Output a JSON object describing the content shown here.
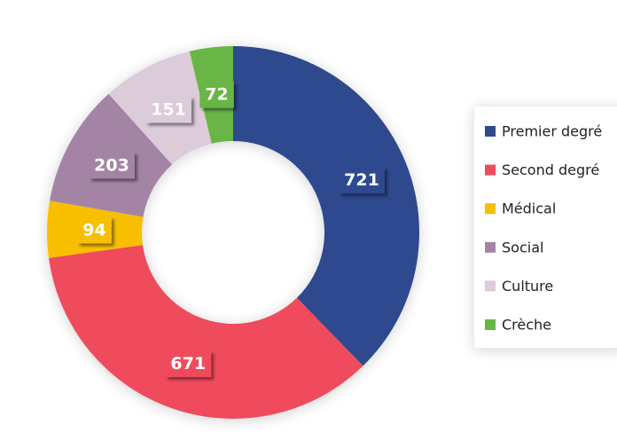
{
  "chart_data": {
    "type": "donut",
    "categories": [
      "Premier degré",
      "Second degré",
      "Médical",
      "Social",
      "Culture",
      "Crèche"
    ],
    "values": [
      721,
      671,
      94,
      203,
      151,
      72
    ],
    "colors": [
      "#2f4a8e",
      "#ef4b5c",
      "#f8bf00",
      "#a484a5",
      "#dccbd9",
      "#69b545"
    ],
    "legend": "right"
  }
}
